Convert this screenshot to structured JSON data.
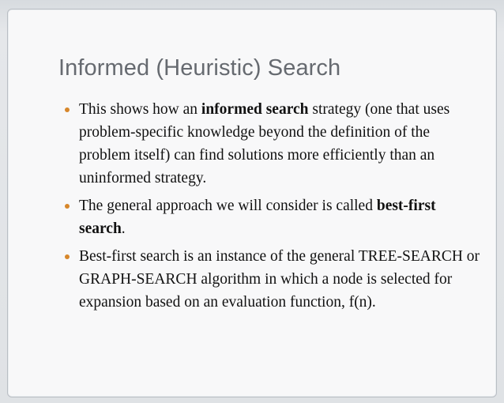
{
  "slide": {
    "title": "Informed (Heuristic) Search",
    "bullet_color": "#d7872b",
    "bullets": [
      {
        "before": "This shows how an ",
        "bold": "informed search",
        "after": " strategy (one that uses problem-specific knowledge beyond the definition of the problem itself) can find solutions more efficiently than an uninformed strategy."
      },
      {
        "before": "The general approach we will consider is called ",
        "bold": "best-first search",
        "after": "."
      },
      {
        "text": "Best-first search is an instance of the general TREE-SEARCH or GRAPH-SEARCH algorithm in which a node is selected for expansion based on an evaluation function, f(n)."
      }
    ]
  }
}
